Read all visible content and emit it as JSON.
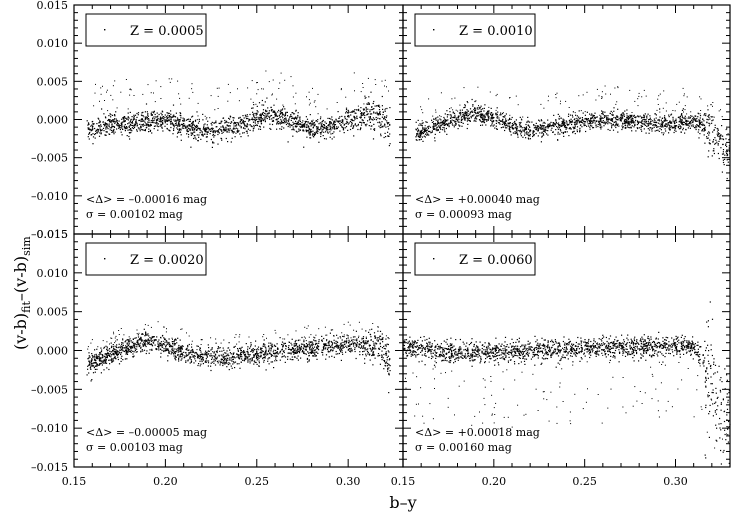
{
  "chart_data": {
    "type": "scatter",
    "xlabel": "b–y",
    "ylabel": "(v-b)",
    "ylabel_sub_1": "fit",
    "ylabel_mid": "–(v-b)",
    "ylabel_sub_2": "sim",
    "xlim": [
      0.15,
      0.33
    ],
    "ylim": [
      -0.015,
      0.015
    ],
    "x_ticks": [
      0.15,
      0.2,
      0.25,
      0.3
    ],
    "x_tick_labels": [
      "0.15",
      "0.20",
      "0.25",
      "0.30"
    ],
    "y_ticks": [
      -0.015,
      -0.01,
      -0.005,
      0.0,
      0.005,
      0.01,
      0.015
    ],
    "y_tick_labels": [
      "–0.015",
      "–0.010",
      "–0.005",
      "0.000",
      "0.005",
      "0.010",
      "0.015"
    ],
    "panels": [
      {
        "legend": "Z = 0.0005",
        "stat_mean": "<Δ> = –0.00016 mag",
        "stat_sigma": "σ = 0.00102 mag",
        "x_start": 0.157,
        "x_end": 0.323,
        "trend": [
          [
            0.157,
            -0.0014
          ],
          [
            0.17,
            -0.0008
          ],
          [
            0.185,
            -0.0003
          ],
          [
            0.2,
            0.0
          ],
          [
            0.215,
            -0.001
          ],
          [
            0.225,
            -0.0015
          ],
          [
            0.24,
            -0.0009
          ],
          [
            0.255,
            0.0006
          ],
          [
            0.265,
            0.0002
          ],
          [
            0.28,
            -0.0012
          ],
          [
            0.29,
            -0.001
          ],
          [
            0.3,
            -0.0002
          ],
          [
            0.31,
            0.0008
          ],
          [
            0.318,
            0.0004
          ],
          [
            0.323,
            -0.001
          ]
        ],
        "scatter_sigma": 0.0007,
        "outlier_band": [
          0.0005,
          0.006
        ],
        "tail_scatter": 0.0012
      },
      {
        "legend": "Z = 0.0010",
        "stat_mean": "<Δ> = +0.00040 mag",
        "stat_sigma": "σ = 0.00093 mag",
        "x_start": 0.157,
        "x_end": 0.33,
        "trend": [
          [
            0.157,
            -0.002
          ],
          [
            0.17,
            -0.0007
          ],
          [
            0.185,
            0.0006
          ],
          [
            0.19,
            0.0008
          ],
          [
            0.2,
            0.0002
          ],
          [
            0.215,
            -0.0013
          ],
          [
            0.225,
            -0.0013
          ],
          [
            0.24,
            -0.0006
          ],
          [
            0.26,
            0.0
          ],
          [
            0.27,
            -0.0001
          ],
          [
            0.285,
            -0.0005
          ],
          [
            0.3,
            -0.0005
          ],
          [
            0.31,
            -0.0003
          ],
          [
            0.318,
            -0.0012
          ],
          [
            0.33,
            -0.0045
          ]
        ],
        "scatter_sigma": 0.0006,
        "outlier_band": [
          0.0005,
          0.0045
        ],
        "tail_scatter": 0.0015
      },
      {
        "legend": "Z = 0.0020",
        "stat_mean": "<Δ> = –0.00005 mag",
        "stat_sigma": "σ = 0.00103 mag",
        "x_start": 0.157,
        "x_end": 0.323,
        "trend": [
          [
            0.157,
            -0.0018
          ],
          [
            0.17,
            -0.0005
          ],
          [
            0.185,
            0.0008
          ],
          [
            0.19,
            0.0012
          ],
          [
            0.2,
            0.0006
          ],
          [
            0.215,
            -0.0007
          ],
          [
            0.23,
            -0.001
          ],
          [
            0.245,
            -0.0006
          ],
          [
            0.26,
            -0.0002
          ],
          [
            0.28,
            0.0003
          ],
          [
            0.3,
            0.0007
          ],
          [
            0.312,
            0.0009
          ],
          [
            0.318,
            0.0003
          ],
          [
            0.323,
            -0.0015
          ]
        ],
        "scatter_sigma": 0.00065,
        "outlier_band": [
          0.0005,
          0.003
        ],
        "tail_scatter": 0.0012
      },
      {
        "legend": "Z = 0.0060",
        "stat_mean": "<Δ> = +0.00018 mag",
        "stat_sigma": "σ = 0.00160 mag",
        "x_start": 0.15,
        "x_end": 0.33,
        "trend": [
          [
            0.15,
            0.0005
          ],
          [
            0.17,
            0.0
          ],
          [
            0.18,
            -0.0003
          ],
          [
            0.2,
            -0.0002
          ],
          [
            0.22,
            0.0
          ],
          [
            0.24,
            0.0002
          ],
          [
            0.26,
            0.0004
          ],
          [
            0.28,
            0.0005
          ],
          [
            0.3,
            0.0005
          ],
          [
            0.31,
            0.0005
          ],
          [
            0.315,
            -0.001
          ],
          [
            0.32,
            -0.004
          ],
          [
            0.33,
            -0.01
          ]
        ],
        "scatter_sigma": 0.00065,
        "outlier_band": [
          -0.01,
          -0.001
        ],
        "tail_scatter": 0.004
      }
    ]
  }
}
